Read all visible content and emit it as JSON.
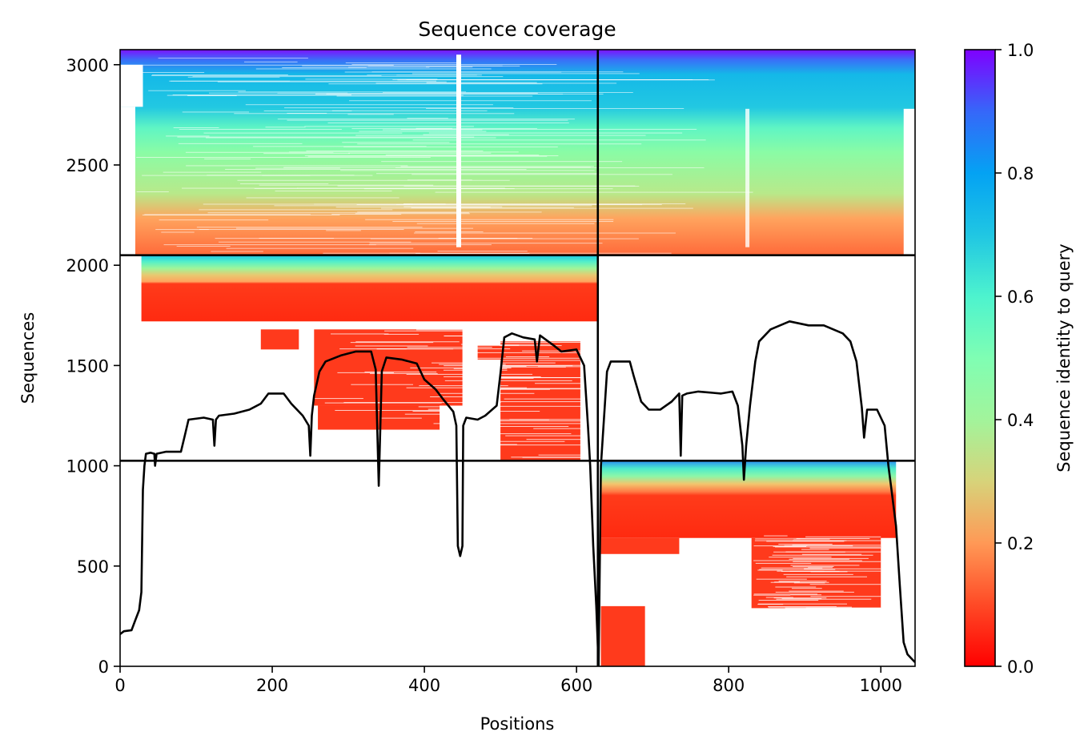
{
  "chart_data": {
    "type": "heatmap",
    "title": "Sequence coverage",
    "xlabel": "Positions",
    "ylabel": "Sequences",
    "xlim": [
      0,
      1045
    ],
    "ylim": [
      0,
      3075
    ],
    "x_ticks": [
      "0",
      "200",
      "400",
      "600",
      "800",
      "1000"
    ],
    "y_ticks": [
      "0",
      "500",
      "1000",
      "1500",
      "2000",
      "2500",
      "3000"
    ],
    "colorbar": {
      "label": "Sequence identity to query",
      "ticks": [
        "0.0",
        "0.2",
        "0.4",
        "0.6",
        "0.8",
        "1.0"
      ],
      "range": [
        0.0,
        1.0
      ],
      "colormap": "rainbow_r"
    },
    "chain_boundaries": {
      "x": [
        628
      ],
      "y": [
        1025,
        2050
      ]
    },
    "blocks": [
      {
        "name": "chain-A-paired-top",
        "x": [
          0,
          628
        ],
        "y": [
          2050,
          3075
        ],
        "identity_range": [
          0.2,
          1.0
        ]
      },
      {
        "name": "chain-B-paired-top",
        "x": [
          628,
          1045
        ],
        "y": [
          2050,
          3075
        ],
        "identity_range": [
          0.2,
          1.0
        ]
      },
      {
        "name": "chain-A-unpaired",
        "x": [
          0,
          628
        ],
        "y": [
          1025,
          2050
        ],
        "identity_range": [
          0.0,
          0.75
        ]
      },
      {
        "name": "chain-B-unpaired",
        "x": [
          628,
          1045
        ],
        "y": [
          0,
          1025
        ],
        "identity_range": [
          0.0,
          0.75
        ]
      }
    ],
    "coverage_line": {
      "name": "coverage",
      "color": "#000000",
      "points": [
        [
          0,
          160
        ],
        [
          5,
          175
        ],
        [
          15,
          180
        ],
        [
          20,
          230
        ],
        [
          25,
          280
        ],
        [
          28,
          370
        ],
        [
          30,
          880
        ],
        [
          32,
          1000
        ],
        [
          34,
          1060
        ],
        [
          40,
          1065
        ],
        [
          45,
          1060
        ],
        [
          46,
          1000
        ],
        [
          48,
          1060
        ],
        [
          60,
          1070
        ],
        [
          80,
          1070
        ],
        [
          85,
          1150
        ],
        [
          90,
          1230
        ],
        [
          110,
          1240
        ],
        [
          122,
          1230
        ],
        [
          124,
          1100
        ],
        [
          126,
          1230
        ],
        [
          130,
          1250
        ],
        [
          150,
          1260
        ],
        [
          170,
          1280
        ],
        [
          185,
          1310
        ],
        [
          195,
          1360
        ],
        [
          215,
          1360
        ],
        [
          225,
          1310
        ],
        [
          240,
          1250
        ],
        [
          248,
          1200
        ],
        [
          250,
          1050
        ],
        [
          252,
          1250
        ],
        [
          255,
          1350
        ],
        [
          262,
          1470
        ],
        [
          270,
          1520
        ],
        [
          290,
          1550
        ],
        [
          310,
          1570
        ],
        [
          330,
          1570
        ],
        [
          336,
          1480
        ],
        [
          340,
          900
        ],
        [
          344,
          1470
        ],
        [
          350,
          1540
        ],
        [
          370,
          1530
        ],
        [
          390,
          1510
        ],
        [
          400,
          1430
        ],
        [
          415,
          1380
        ],
        [
          425,
          1330
        ],
        [
          438,
          1270
        ],
        [
          442,
          1200
        ],
        [
          444,
          600
        ],
        [
          447,
          550
        ],
        [
          450,
          600
        ],
        [
          451,
          1200
        ],
        [
          455,
          1240
        ],
        [
          470,
          1230
        ],
        [
          480,
          1250
        ],
        [
          495,
          1300
        ],
        [
          500,
          1460
        ],
        [
          505,
          1640
        ],
        [
          515,
          1660
        ],
        [
          530,
          1640
        ],
        [
          545,
          1630
        ],
        [
          548,
          1520
        ],
        [
          552,
          1650
        ],
        [
          570,
          1600
        ],
        [
          580,
          1570
        ],
        [
          600,
          1580
        ],
        [
          610,
          1500
        ],
        [
          615,
          1200
        ],
        [
          618,
          1000
        ],
        [
          622,
          600
        ],
        [
          626,
          300
        ],
        [
          629,
          0
        ],
        [
          632,
          1000
        ],
        [
          640,
          1470
        ],
        [
          645,
          1520
        ],
        [
          670,
          1520
        ],
        [
          675,
          1450
        ],
        [
          685,
          1320
        ],
        [
          695,
          1280
        ],
        [
          710,
          1280
        ],
        [
          725,
          1320
        ],
        [
          735,
          1360
        ],
        [
          737,
          1050
        ],
        [
          739,
          1350
        ],
        [
          745,
          1360
        ],
        [
          760,
          1370
        ],
        [
          790,
          1360
        ],
        [
          805,
          1370
        ],
        [
          812,
          1300
        ],
        [
          818,
          1100
        ],
        [
          820,
          930
        ],
        [
          823,
          1100
        ],
        [
          828,
          1300
        ],
        [
          835,
          1520
        ],
        [
          840,
          1620
        ],
        [
          855,
          1680
        ],
        [
          880,
          1720
        ],
        [
          905,
          1700
        ],
        [
          925,
          1700
        ],
        [
          950,
          1660
        ],
        [
          960,
          1620
        ],
        [
          968,
          1520
        ],
        [
          975,
          1290
        ],
        [
          978,
          1140
        ],
        [
          982,
          1280
        ],
        [
          995,
          1280
        ],
        [
          1005,
          1200
        ],
        [
          1010,
          1000
        ],
        [
          1015,
          850
        ],
        [
          1020,
          700
        ],
        [
          1025,
          400
        ],
        [
          1030,
          120
        ],
        [
          1035,
          60
        ],
        [
          1040,
          40
        ],
        [
          1045,
          20
        ]
      ]
    }
  }
}
